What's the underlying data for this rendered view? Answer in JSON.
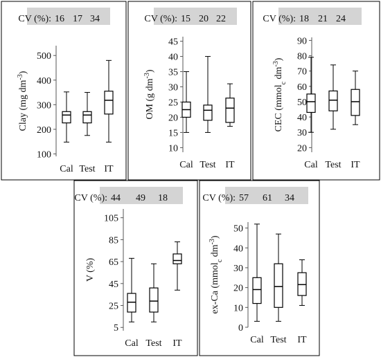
{
  "chart_data": [
    {
      "type": "box",
      "cv_label": "CV (%):",
      "cv_values": [
        "16",
        "17",
        "34"
      ],
      "ylabel_parts": [
        {
          "t": "Clay (mg dm",
          "s": ""
        },
        {
          "t": "-3",
          "s": "sup"
        },
        {
          "t": ")",
          "s": ""
        }
      ],
      "categories": [
        "Cal",
        "Test",
        "IT"
      ],
      "ylim": [
        90,
        540
      ],
      "yticks": [
        100,
        200,
        300,
        400,
        500
      ],
      "boxes": [
        {
          "min": 148,
          "q1": 226,
          "median": 258,
          "q3": 272,
          "max": 352
        },
        {
          "min": 175,
          "q1": 226,
          "median": 258,
          "q3": 272,
          "max": 350
        },
        {
          "min": 148,
          "q1": 262,
          "median": 318,
          "q3": 355,
          "max": 480
        }
      ]
    },
    {
      "type": "box",
      "cv_label": "CV (%):",
      "cv_values": [
        "15",
        "20",
        "22"
      ],
      "ylabel_parts": [
        {
          "t": "OM (g dm",
          "s": ""
        },
        {
          "t": "-3",
          "s": "sup"
        },
        {
          "t": ")",
          "s": ""
        }
      ],
      "categories": [
        "Cal",
        "Test",
        "IT"
      ],
      "ylim": [
        8.5,
        46.5
      ],
      "yticks": [
        10,
        15,
        20,
        25,
        30,
        35,
        40,
        45
      ],
      "boxes": [
        {
          "min": 15,
          "q1": 20,
          "median": 22.5,
          "q3": 25,
          "max": 35
        },
        {
          "min": 15,
          "q1": 19,
          "median": 22.3,
          "q3": 24,
          "max": 40
        },
        {
          "min": 17,
          "q1": 18.3,
          "median": 23,
          "q3": 26.3,
          "max": 31
        }
      ]
    },
    {
      "type": "box",
      "cv_label": "CV (%):",
      "cv_values": [
        "18",
        "21",
        "24"
      ],
      "ylabel_parts": [
        {
          "t": "CEC (mmol",
          "s": ""
        },
        {
          "t": "c",
          "s": "sub"
        },
        {
          "t": " dm",
          "s": ""
        },
        {
          "t": "-3",
          "s": "sup"
        },
        {
          "t": ")",
          "s": ""
        }
      ],
      "categories": [
        "Cal",
        "Test",
        "IT"
      ],
      "ylim": [
        17,
        92
      ],
      "yticks": [
        20,
        30,
        40,
        50,
        60,
        70,
        80,
        90
      ],
      "boxes": [
        {
          "min": 30,
          "q1": 43,
          "median": 50,
          "q3": 55,
          "max": 79
        },
        {
          "min": 32,
          "q1": 44,
          "median": 51,
          "q3": 57,
          "max": 74
        },
        {
          "min": 35,
          "q1": 41,
          "median": 50,
          "q3": 58,
          "max": 70
        }
      ]
    },
    {
      "type": "box",
      "cv_label": "CV (%):",
      "cv_values": [
        "44",
        "49",
        "18"
      ],
      "ylabel_parts": [
        {
          "t": "V (%)",
          "s": ""
        }
      ],
      "categories": [
        "Cal",
        "Test",
        "IT"
      ],
      "ylim": [
        2,
        113
      ],
      "yticks": [
        5,
        25,
        45,
        65,
        85,
        105
      ],
      "boxes": [
        {
          "min": 10,
          "q1": 19,
          "median": 28,
          "q3": 36,
          "max": 68
        },
        {
          "min": 10,
          "q1": 19,
          "median": 29,
          "q3": 41,
          "max": 63
        },
        {
          "min": 39,
          "q1": 63,
          "median": 66,
          "q3": 72,
          "max": 83
        }
      ]
    },
    {
      "type": "box",
      "cv_label": "CV (%):",
      "cv_values": [
        "57",
        "61",
        "34"
      ],
      "ylabel_parts": [
        {
          "t": "ex-Ca (mmol",
          "s": ""
        },
        {
          "t": "c",
          "s": "sub"
        },
        {
          "t": " dm",
          "s": ""
        },
        {
          "t": "-3",
          "s": "sup"
        },
        {
          "t": ")",
          "s": ""
        }
      ],
      "categories": [
        "Cal",
        "Test",
        "IT"
      ],
      "ylim": [
        0,
        53
      ],
      "yticks": [
        0,
        10,
        20,
        30,
        40,
        50
      ],
      "boxes": [
        {
          "min": 3,
          "q1": 12,
          "median": 19,
          "q3": 25,
          "max": 52
        },
        {
          "min": 3,
          "q1": 10,
          "median": 20.5,
          "q3": 32,
          "max": 47
        },
        {
          "min": 11,
          "q1": 16,
          "median": 21.5,
          "q3": 27.5,
          "max": 34
        }
      ]
    }
  ]
}
